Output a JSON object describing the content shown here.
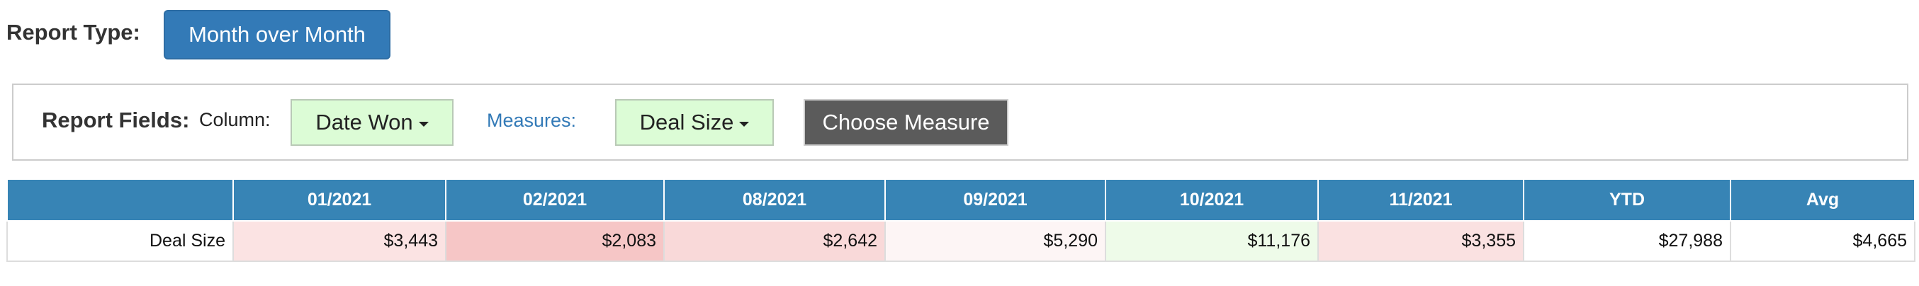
{
  "report_type": {
    "label": "Report Type:",
    "button": "Month over Month"
  },
  "report_fields": {
    "label": "Report Fields:",
    "column_label": "Column:",
    "column_button": "Date Won",
    "measures_label": "Measures:",
    "measure_button": "Deal Size",
    "choose_button": "Choose Measure"
  },
  "table": {
    "headers": [
      "",
      "01/2021",
      "02/2021",
      "08/2021",
      "09/2021",
      "10/2021",
      "11/2021",
      "YTD",
      "Avg"
    ],
    "rows": [
      [
        "Deal Size",
        "$3,443",
        "$2,083",
        "$2,642",
        "$5,290",
        "$11,176",
        "$3,355",
        "$27,988",
        "$4,665"
      ]
    ]
  }
}
